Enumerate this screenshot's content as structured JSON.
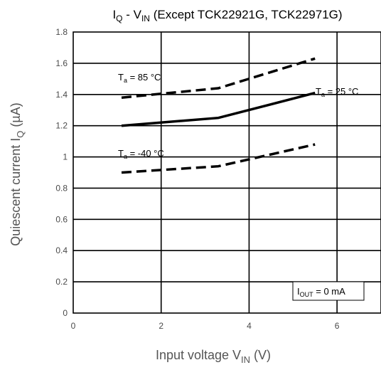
{
  "chart_data": {
    "type": "line",
    "title": {
      "main": "I",
      "main_sub": "Q",
      "mid": " - V",
      "mid_sub": "IN",
      "rest": " (Except TCK22921G, TCK22971G)"
    },
    "xlabel": {
      "main": "Input voltage  V",
      "sub": "IN",
      "rest": "  (V)"
    },
    "ylabel": {
      "main": "Quiescent current  I",
      "sub": "Q",
      "rest": "  (µA)"
    },
    "xlim": [
      0,
      7
    ],
    "ylim": [
      0,
      1.8
    ],
    "x_ticks": [
      "0",
      "2",
      "4",
      "6"
    ],
    "y_ticks": [
      "0",
      "0.2",
      "0.4",
      "0.6",
      "0.8",
      "1",
      "1.2",
      "1.4",
      "1.6",
      "1.8"
    ],
    "grid": true,
    "series": [
      {
        "name": "Ta = 85 °C",
        "label": {
          "main": "T",
          "sub": "a",
          "rest": " = 85 °C"
        },
        "style": "dashed",
        "x": [
          1.1,
          3.3,
          5.5
        ],
        "y": [
          1.38,
          1.44,
          1.63
        ]
      },
      {
        "name": "Ta = 25 °C",
        "label": {
          "main": "T",
          "sub": "a",
          "rest": " = 25 °C"
        },
        "style": "solid",
        "x": [
          1.1,
          3.3,
          5.5
        ],
        "y": [
          1.2,
          1.25,
          1.41
        ]
      },
      {
        "name": "Ta = -40 °C",
        "label": {
          "main": "T",
          "sub": "a",
          "rest": " = -40 °C"
        },
        "style": "dashed",
        "x": [
          1.1,
          3.3,
          5.5
        ],
        "y": [
          0.9,
          0.94,
          1.08
        ]
      }
    ],
    "condition": {
      "main": "I",
      "sub": "OUT",
      "rest": " = 0 mA"
    }
  }
}
